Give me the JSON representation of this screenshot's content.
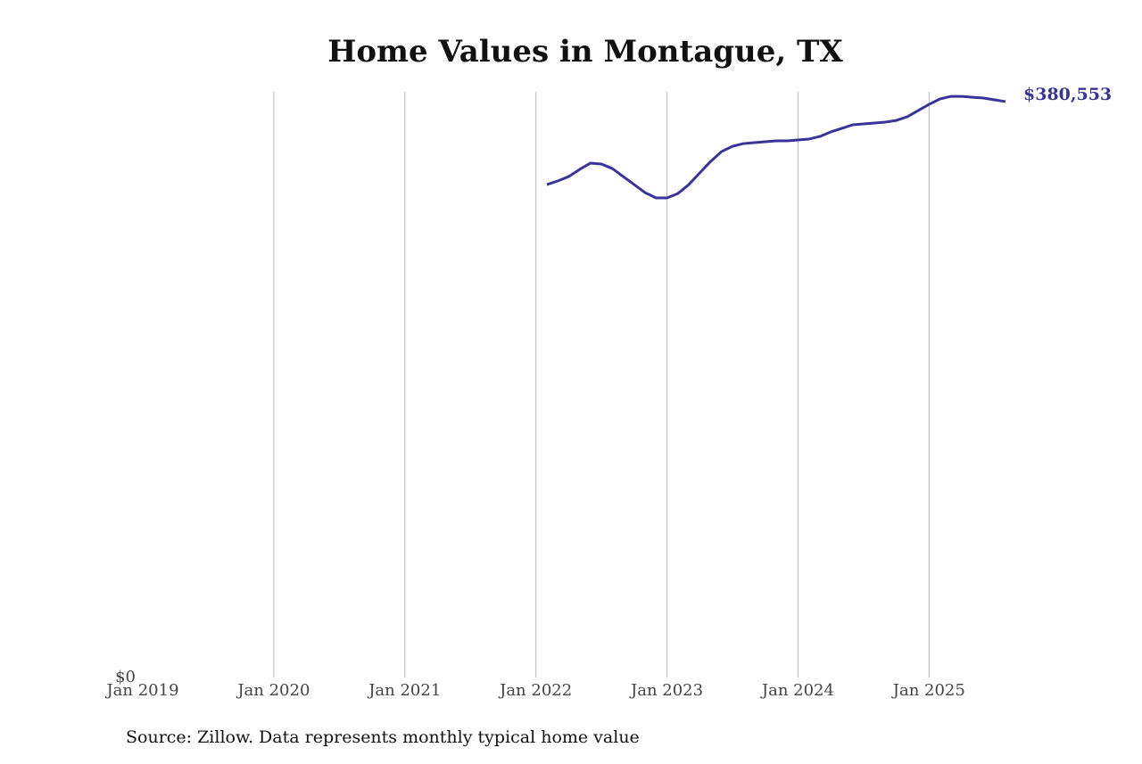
{
  "chart_data": {
    "type": "line",
    "title": "Home Values in Montague, TX",
    "source": "Source: Zillow. Data represents monthly typical home value",
    "x": [
      "2022-02",
      "2022-03",
      "2022-04",
      "2022-05",
      "2022-06",
      "2022-07",
      "2022-08",
      "2022-09",
      "2022-10",
      "2022-11",
      "2022-12",
      "2023-01",
      "2023-02",
      "2023-03",
      "2023-04",
      "2023-05",
      "2023-06",
      "2023-07",
      "2023-08",
      "2023-09",
      "2023-10",
      "2023-11",
      "2023-12",
      "2024-01",
      "2024-02",
      "2024-03",
      "2024-04",
      "2024-05",
      "2024-06",
      "2024-07",
      "2024-08",
      "2024-09",
      "2024-10",
      "2024-11",
      "2024-12",
      "2025-01",
      "2025-02",
      "2025-03",
      "2025-04",
      "2025-05",
      "2025-06",
      "2025-07",
      "2025-08"
    ],
    "series": [
      {
        "color": "#3a3499",
        "values": [
          325700,
          328100,
          331000,
          335700,
          339900,
          339300,
          336300,
          331000,
          325700,
          320400,
          316900,
          316900,
          319800,
          325700,
          333400,
          341000,
          347500,
          351000,
          352800,
          353400,
          354000,
          354600,
          354600,
          355200,
          355800,
          357500,
          360500,
          362800,
          365200,
          365800,
          366400,
          367000,
          368100,
          370500,
          374600,
          378700,
          382300,
          384000,
          384000,
          383400,
          382900,
          381700,
          380553
        ],
        "value_labels": [
          null,
          null,
          null,
          null,
          null,
          null,
          null,
          null,
          null,
          null,
          null,
          null,
          null,
          null,
          null,
          null,
          null,
          null,
          null,
          null,
          null,
          null,
          null,
          null,
          null,
          null,
          null,
          null,
          null,
          null,
          null,
          null,
          null,
          null,
          null,
          null,
          null,
          null,
          null,
          null,
          null,
          null,
          "$380,553"
        ]
      }
    ],
    "xlim": [
      "2019-01",
      "2025-08"
    ],
    "xticks": [
      {
        "value": "2019-01",
        "label": "Jan 2019"
      },
      {
        "value": "2020-01",
        "label": "Jan 2020"
      },
      {
        "value": "2021-01",
        "label": "Jan 2021"
      },
      {
        "value": "2022-01",
        "label": "Jan 2022"
      },
      {
        "value": "2023-01",
        "label": "Jan 2023"
      },
      {
        "value": "2024-01",
        "label": "Jan 2024"
      },
      {
        "value": "2025-01",
        "label": "Jan 2025"
      }
    ],
    "ylim": [
      0,
      387000
    ],
    "yticks": [
      {
        "value": 0,
        "label": "$0"
      }
    ],
    "grid": true
  }
}
